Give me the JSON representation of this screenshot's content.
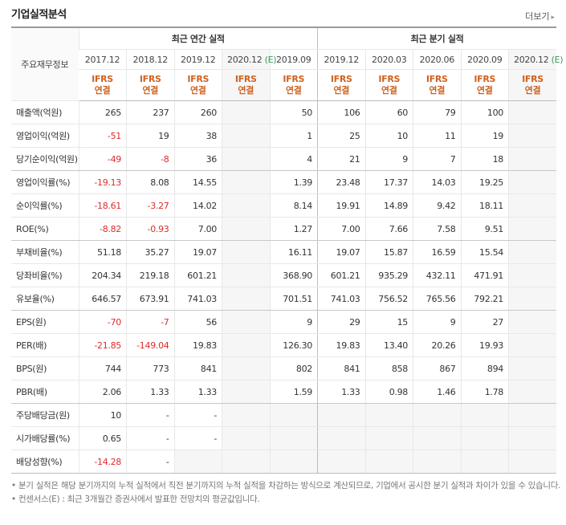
{
  "header": {
    "title": "기업실적분석",
    "more": "더보기"
  },
  "table": {
    "corner": "주요재무정보",
    "groups": [
      "최근 연간 실적",
      "최근 분기 실적"
    ],
    "columns": [
      {
        "period": "2017.12",
        "accounting": "IFRS",
        "basis": "연결"
      },
      {
        "period": "2018.12",
        "accounting": "IFRS",
        "basis": "연결"
      },
      {
        "period": "2019.12",
        "accounting": "IFRS",
        "basis": "연결"
      },
      {
        "period": "2020.12",
        "estimate": "(E)",
        "accounting": "IFRS",
        "basis": "연결"
      },
      {
        "period": "2019.09",
        "accounting": "IFRS",
        "basis": "연결"
      },
      {
        "period": "2019.12",
        "accounting": "IFRS",
        "basis": "연결"
      },
      {
        "period": "2020.03",
        "accounting": "IFRS",
        "basis": "연결"
      },
      {
        "period": "2020.06",
        "accounting": "IFRS",
        "basis": "연결"
      },
      {
        "period": "2020.09",
        "accounting": "IFRS",
        "basis": "연결"
      },
      {
        "period": "2020.12",
        "estimate": "(E)",
        "accounting": "IFRS",
        "basis": "연결"
      }
    ],
    "rows": [
      {
        "label": "매출액(억원)",
        "values": [
          "265",
          "237",
          "260",
          null,
          "50",
          "106",
          "60",
          "79",
          "100",
          null
        ]
      },
      {
        "label": "영업이익(억원)",
        "values": [
          "-51",
          "19",
          "38",
          null,
          "1",
          "25",
          "10",
          "11",
          "19",
          null
        ]
      },
      {
        "label": "당기순이익(억원)",
        "values": [
          "-49",
          "-8",
          "36",
          null,
          "4",
          "21",
          "9",
          "7",
          "18",
          null
        ]
      },
      {
        "label": "영업이익률(%)",
        "values": [
          "-19.13",
          "8.08",
          "14.55",
          null,
          "1.39",
          "23.48",
          "17.37",
          "14.03",
          "19.25",
          null
        ]
      },
      {
        "label": "순이익률(%)",
        "values": [
          "-18.61",
          "-3.27",
          "14.02",
          null,
          "8.14",
          "19.91",
          "14.89",
          "9.42",
          "18.11",
          null
        ]
      },
      {
        "label": "ROE(%)",
        "values": [
          "-8.82",
          "-0.93",
          "7.00",
          null,
          "1.27",
          "7.00",
          "7.66",
          "7.58",
          "9.51",
          null
        ]
      },
      {
        "label": "부채비율(%)",
        "values": [
          "51.18",
          "35.27",
          "19.07",
          null,
          "16.11",
          "19.07",
          "15.87",
          "16.59",
          "15.54",
          null
        ]
      },
      {
        "label": "당좌비율(%)",
        "values": [
          "204.34",
          "219.18",
          "601.21",
          null,
          "368.90",
          "601.21",
          "935.29",
          "432.11",
          "471.91",
          null
        ]
      },
      {
        "label": "유보율(%)",
        "values": [
          "646.57",
          "673.91",
          "741.03",
          null,
          "701.51",
          "741.03",
          "756.52",
          "765.56",
          "792.21",
          null
        ]
      },
      {
        "label": "EPS(원)",
        "values": [
          "-70",
          "-7",
          "56",
          null,
          "9",
          "29",
          "15",
          "9",
          "27",
          null
        ]
      },
      {
        "label": "PER(배)",
        "values": [
          "-21.85",
          "-149.04",
          "19.83",
          null,
          "126.30",
          "19.83",
          "13.40",
          "20.26",
          "19.93",
          null
        ]
      },
      {
        "label": "BPS(원)",
        "values": [
          "744",
          "773",
          "841",
          null,
          "802",
          "841",
          "858",
          "867",
          "894",
          null
        ]
      },
      {
        "label": "PBR(배)",
        "values": [
          "2.06",
          "1.33",
          "1.33",
          null,
          "1.59",
          "1.33",
          "0.98",
          "1.46",
          "1.78",
          null
        ]
      },
      {
        "label": "주당배당금(원)",
        "values": [
          "10",
          "-",
          "-",
          null,
          null,
          null,
          null,
          null,
          null,
          null
        ]
      },
      {
        "label": "시가배당률(%)",
        "values": [
          "0.65",
          "-",
          "-",
          null,
          null,
          null,
          null,
          null,
          null,
          null
        ]
      },
      {
        "label": "배당성향(%)",
        "values": [
          "-14.28",
          "-",
          null,
          null,
          null,
          null,
          null,
          null,
          null,
          null
        ]
      }
    ]
  },
  "notes": [
    "분기 실적은 해당 분기까지의 누적 실적에서 직전 분기까지의 누적 실적을 차감하는 방식으로 계산되므로, 기업에서 공시한 분기 실적과 차이가 있을 수 있습니다.",
    "컨센서스(E) : 최근 3개월간 증권사에서 발표한 전망치의 평균값입니다."
  ]
}
